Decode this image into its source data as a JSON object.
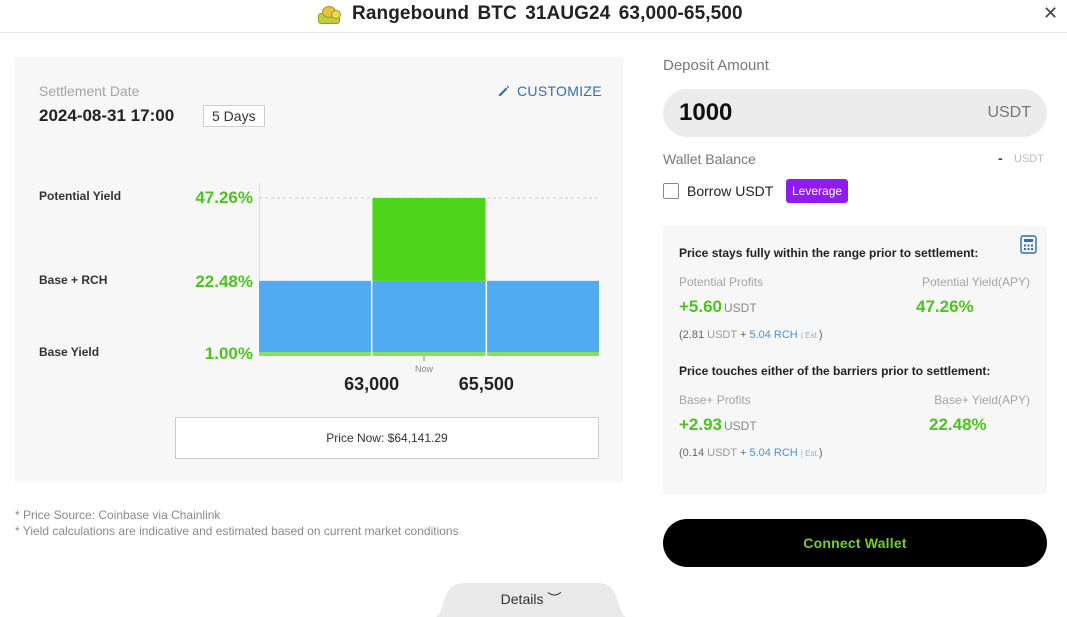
{
  "header": {
    "title": "Rangebound  BTC  31AUG24  63,000-65,500",
    "close_icon": "close-icon",
    "close_glyph": "✕"
  },
  "settlement": {
    "label": "Settlement Date",
    "date": "2024-08-31 17:00",
    "days": "5 Days",
    "customize": "CUSTOMIZE"
  },
  "yield_rows": [
    {
      "label": "Potential Yield",
      "value": "47.26%"
    },
    {
      "label": "Base + RCH",
      "value": "22.48%"
    },
    {
      "label": "Base Yield",
      "value": "1.00%"
    }
  ],
  "chart_data": {
    "type": "bar",
    "x_markers": [
      "63,000",
      "65,500"
    ],
    "now_label": "Now",
    "now_price": 64141.29,
    "range_bounds": [
      63000,
      65500
    ],
    "ylim": [
      0,
      50
    ],
    "series": [
      {
        "name": "Base Yield",
        "value": 1.0,
        "color": "#86e05c"
      },
      {
        "name": "Base + RCH",
        "value": 22.48,
        "color": "#52aaf0"
      },
      {
        "name": "Potential Yield",
        "value": 47.26,
        "color": "#4dd31a"
      }
    ],
    "grid": false,
    "legend": "none"
  },
  "price_now": "Price Now: $64,141.29",
  "footnotes": [
    "* Price Source: Coinbase via Chainlink",
    "* Yield calculations are indicative and estimated based on current market conditions"
  ],
  "details": {
    "label": "Details ︶"
  },
  "deposit": {
    "label": "Deposit Amount",
    "value": "1000",
    "unit": "USDT"
  },
  "wallet": {
    "label": "Wallet Balance",
    "value": "-",
    "unit": "USDT"
  },
  "borrow": {
    "label": "Borrow USDT",
    "checked": false,
    "badge": "Leverage"
  },
  "scenario_in_range": {
    "heading": "Price stays fully within the range prior to settlement:",
    "profits_label": "Potential Profits",
    "profits_value": "+5.60",
    "profits_unit": "USDT",
    "yield_label": "Potential Yield(APY)",
    "yield_value": "47.26%",
    "breakdown": {
      "open": "(2.81",
      "unit1": "USDT",
      "plus": "+",
      "rch": "5.04 RCH",
      "est": "| Est.",
      "close": ")"
    }
  },
  "scenario_touch": {
    "heading": "Price touches either of the barriers prior to settlement:",
    "profits_label": "Base+ Profits",
    "profits_value": "+2.93",
    "profits_unit": "USDT",
    "yield_label": "Base+ Yield(APY)",
    "yield_value": "22.48%",
    "breakdown": {
      "open": "(0.14",
      "unit1": "USDT",
      "plus": "+",
      "rch": "5.04 RCH",
      "est": "| Est.",
      "close": ")"
    }
  },
  "connect_button": "Connect Wallet",
  "colors": {
    "accent_green": "#4cc420",
    "button_green_text": "#6fd12a",
    "customize_blue": "#2f6fb2",
    "leverage_purple": "#8f1bef",
    "rch_blue": "#4a8fdf"
  }
}
